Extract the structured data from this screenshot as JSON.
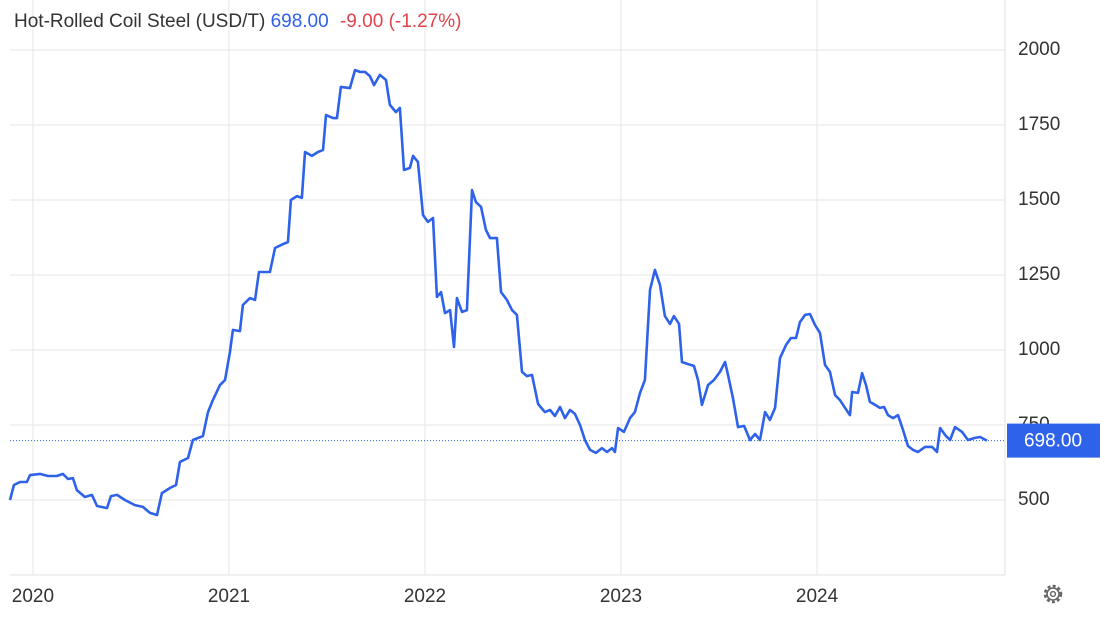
{
  "chart_data": {
    "type": "line",
    "title": "Hot-Rolled Coil Steel (USD/T)",
    "last_price": "698.00",
    "change": "-9.00 (-1.27%)",
    "color": "#2f62ea",
    "price_color": "#2f62ea",
    "change_color": "#e0434b",
    "grid": true,
    "xlim": [
      2019.883,
      2024.959
    ],
    "xticks": [
      2020,
      2021,
      2022,
      2023,
      2024
    ],
    "ylim": [
      250,
      2140
    ],
    "yticks": [
      500,
      750,
      1000,
      1250,
      1500,
      1750,
      2000
    ],
    "x": [
      2019.883,
      2019.903,
      2019.934,
      2019.969,
      2019.985,
      2020.036,
      2020.077,
      2020.122,
      2020.153,
      2020.179,
      2020.204,
      2020.224,
      2020.265,
      2020.301,
      2020.327,
      2020.378,
      2020.398,
      2020.429,
      2020.469,
      2020.52,
      2020.561,
      2020.597,
      2020.633,
      2020.658,
      2020.699,
      2020.73,
      2020.75,
      2020.791,
      2020.816,
      2020.867,
      2020.893,
      2020.918,
      2020.954,
      2020.98,
      2021.005,
      2021.02,
      2021.056,
      2021.071,
      2021.107,
      2021.133,
      2021.153,
      2021.209,
      2021.235,
      2021.276,
      2021.301,
      2021.316,
      2021.347,
      2021.372,
      2021.388,
      2021.423,
      2021.454,
      2021.48,
      2021.495,
      2021.531,
      2021.551,
      2021.571,
      2021.617,
      2021.643,
      2021.668,
      2021.694,
      2021.719,
      2021.74,
      2021.77,
      2021.801,
      2021.821,
      2021.852,
      2021.872,
      2021.893,
      2021.923,
      2021.939,
      2021.964,
      2021.99,
      2022.015,
      2022.041,
      2022.061,
      2022.082,
      2022.102,
      2022.128,
      2022.148,
      2022.163,
      2022.189,
      2022.214,
      2022.24,
      2022.26,
      2022.286,
      2022.311,
      2022.332,
      2022.367,
      2022.388,
      2022.418,
      2022.444,
      2022.469,
      2022.495,
      2022.52,
      2022.546,
      2022.577,
      2022.612,
      2022.638,
      2022.663,
      2022.689,
      2022.714,
      2022.74,
      2022.765,
      2022.791,
      2022.816,
      2022.842,
      2022.872,
      2022.903,
      2022.929,
      2022.954,
      2022.969,
      2022.985,
      2023.015,
      2023.046,
      2023.071,
      2023.097,
      2023.122,
      2023.148,
      2023.173,
      2023.199,
      2023.224,
      2023.25,
      2023.27,
      2023.296,
      2023.311,
      2023.342,
      2023.372,
      2023.393,
      2023.413,
      2023.444,
      2023.474,
      2023.505,
      2023.531,
      2023.546,
      2023.571,
      2023.597,
      2023.628,
      2023.658,
      2023.684,
      2023.709,
      2023.735,
      2023.76,
      2023.786,
      2023.811,
      2023.842,
      2023.867,
      2023.893,
      2023.913,
      2023.939,
      2023.964,
      2023.99,
      2024.015,
      2024.041,
      2024.066,
      2024.092,
      2024.117,
      2024.143,
      2024.168,
      2024.179,
      2024.209,
      2024.23,
      2024.25,
      2024.27,
      2024.296,
      2024.321,
      2024.342,
      2024.362,
      2024.388,
      2024.413,
      2024.439,
      2024.464,
      2024.49,
      2024.515,
      2024.551,
      2024.587,
      2024.612,
      2024.628,
      2024.658,
      2024.679,
      2024.704,
      2024.74,
      2024.77,
      2024.806,
      2024.832,
      2024.867
    ],
    "values": [
      500,
      550,
      560,
      560,
      583,
      587,
      580,
      580,
      587,
      570,
      573,
      533,
      510,
      517,
      480,
      473,
      513,
      517,
      500,
      483,
      477,
      457,
      450,
      523,
      540,
      550,
      627,
      640,
      700,
      713,
      793,
      833,
      883,
      900,
      993,
      1067,
      1063,
      1150,
      1173,
      1167,
      1260,
      1260,
      1340,
      1353,
      1360,
      1500,
      1513,
      1507,
      1660,
      1647,
      1660,
      1667,
      1783,
      1773,
      1773,
      1877,
      1873,
      1933,
      1927,
      1927,
      1913,
      1883,
      1917,
      1900,
      1817,
      1793,
      1807,
      1600,
      1607,
      1647,
      1627,
      1450,
      1427,
      1440,
      1177,
      1193,
      1123,
      1133,
      1010,
      1173,
      1127,
      1133,
      1533,
      1493,
      1477,
      1400,
      1373,
      1373,
      1193,
      1167,
      1133,
      1117,
      927,
      913,
      917,
      820,
      793,
      800,
      780,
      810,
      773,
      800,
      787,
      750,
      700,
      667,
      657,
      673,
      660,
      673,
      660,
      740,
      727,
      773,
      793,
      857,
      900,
      1200,
      1267,
      1217,
      1113,
      1087,
      1113,
      1087,
      960,
      953,
      947,
      900,
      817,
      883,
      900,
      927,
      960,
      917,
      840,
      743,
      747,
      700,
      720,
      700,
      793,
      767,
      807,
      973,
      1017,
      1040,
      1040,
      1093,
      1117,
      1120,
      1083,
      1057,
      950,
      927,
      850,
      833,
      807,
      783,
      860,
      857,
      923,
      883,
      827,
      817,
      807,
      810,
      783,
      773,
      783,
      733,
      680,
      667,
      660,
      677,
      677,
      660,
      740,
      713,
      700,
      743,
      727,
      700,
      707,
      710,
      698
    ]
  }
}
